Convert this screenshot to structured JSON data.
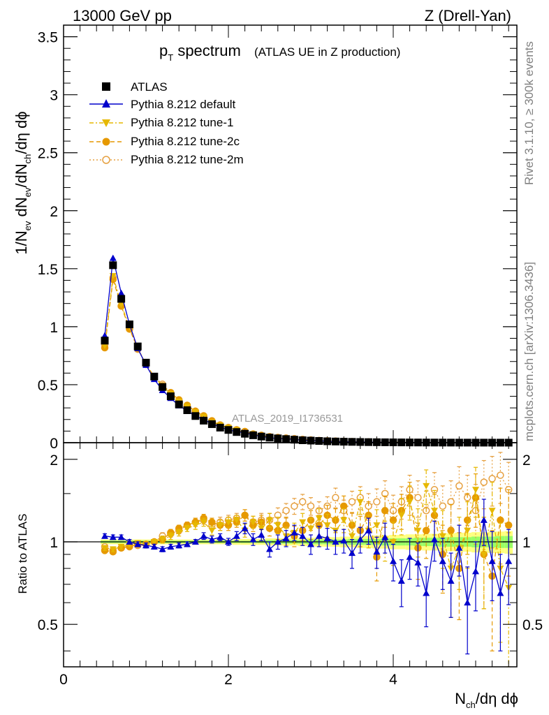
{
  "header": {
    "energy": "13000 GeV pp",
    "process": "Z (Drell-Yan)"
  },
  "side_labels": {
    "rivet": "Rivet 3.1.10, ≥ 300k events",
    "mcplots": "mcplots.cern.ch [arXiv:1306.3436]"
  },
  "colors": {
    "atlas": "#000000",
    "default": "#0000cc",
    "tune1": "#e6b800",
    "tune2c": "#e69900",
    "tune2m": "#e6a040",
    "band_inner": "#99ff66",
    "band_outer": "#ffff80"
  },
  "chart_data": {
    "type": "scatter",
    "title_main": "p",
    "title_sub": "T",
    "title_rest": " spectrum",
    "title_note": "(ATLAS UE in Z production)",
    "analysis_id": "ATLAS_2019_I1736531",
    "xlabel_main": "N",
    "xlabel_sub": "ch",
    "xlabel_rest": "/dη dϕ",
    "ylabel": "1/N_ev dN_ev/dN_ch/dη dϕ",
    "ylabel_parts": {
      "a": "1/N",
      "a_sub": "ev",
      "b": " dN",
      "b_sub": "ev",
      "c": "/dN",
      "c_sub": "ch",
      "d": "/dη dϕ"
    },
    "ratio_ylabel": "Ratio to ATLAS",
    "xlim": [
      0,
      5.5
    ],
    "ylim": [
      0,
      3.6
    ],
    "ratio_ylim": [
      0.35,
      2.3
    ],
    "x_ticks": [
      "0",
      "2",
      "4"
    ],
    "y_ticks": [
      "0",
      "0.5",
      "1",
      "1.5",
      "2",
      "2.5",
      "3",
      "3.5"
    ],
    "ratio_ticks": [
      "0.5",
      "1",
      "2"
    ],
    "legend": [
      "ATLAS",
      "Pythia 8.212 default",
      "Pythia 8.212 tune-1",
      "Pythia 8.212 tune-2c",
      "Pythia 8.212 tune-2m"
    ],
    "x": [
      0.5,
      0.6,
      0.7,
      0.8,
      0.9,
      1.0,
      1.1,
      1.2,
      1.3,
      1.4,
      1.5,
      1.6,
      1.7,
      1.8,
      1.9,
      2.0,
      2.1,
      2.2,
      2.3,
      2.4,
      2.5,
      2.6,
      2.7,
      2.8,
      2.9,
      3.0,
      3.1,
      3.2,
      3.3,
      3.4,
      3.5,
      3.6,
      3.7,
      3.8,
      3.9,
      4.0,
      4.1,
      4.2,
      4.3,
      4.4,
      4.5,
      4.6,
      4.7,
      4.8,
      4.9,
      5.0,
      5.1,
      5.2,
      5.3,
      5.4
    ],
    "atlas_values": [
      0.88,
      1.53,
      1.24,
      1.02,
      0.83,
      0.69,
      0.57,
      0.48,
      0.4,
      0.33,
      0.28,
      0.23,
      0.19,
      0.16,
      0.13,
      0.11,
      0.092,
      0.077,
      0.064,
      0.053,
      0.044,
      0.037,
      0.031,
      0.026,
      0.021,
      0.018,
      0.015,
      0.012,
      0.01,
      0.0085,
      0.0071,
      0.0059,
      0.0049,
      0.0041,
      0.0034,
      0.0029,
      0.0024,
      0.002,
      0.0017,
      0.0014,
      0.0012,
      0.001,
      0.00085,
      0.0007,
      0.0006,
      0.0005,
      0.00042,
      0.00035,
      0.0003,
      0.00025
    ],
    "ratio_series": [
      {
        "name": "Pythia 8.212 default",
        "values": [
          1.05,
          1.04,
          1.04,
          1.0,
          0.98,
          0.97,
          0.96,
          0.94,
          0.96,
          0.97,
          0.98,
          1.0,
          1.05,
          1.02,
          1.04,
          1.0,
          1.05,
          1.12,
          1.02,
          1.06,
          0.94,
          1.0,
          1.03,
          1.08,
          1.05,
          0.98,
          1.05,
          1.03,
          1.0,
          1.01,
          0.91,
          1.02,
          1.1,
          0.92,
          1.04,
          0.85,
          0.72,
          0.88,
          0.84,
          0.65,
          1.02,
          0.85,
          0.72,
          0.95,
          0.6,
          0.78,
          1.2,
          0.85,
          0.65,
          0.85
        ],
        "errors": [
          0.02,
          0.02,
          0.02,
          0.02,
          0.02,
          0.02,
          0.02,
          0.02,
          0.02,
          0.02,
          0.02,
          0.02,
          0.03,
          0.03,
          0.03,
          0.03,
          0.04,
          0.05,
          0.05,
          0.05,
          0.06,
          0.06,
          0.07,
          0.07,
          0.08,
          0.08,
          0.09,
          0.09,
          0.1,
          0.1,
          0.11,
          0.11,
          0.12,
          0.12,
          0.13,
          0.13,
          0.14,
          0.15,
          0.15,
          0.16,
          0.17,
          0.18,
          0.19,
          0.2,
          0.21,
          0.22,
          0.23,
          0.24,
          0.25,
          0.26
        ]
      },
      {
        "name": "Pythia 8.212 tune-1",
        "values": [
          0.95,
          0.94,
          0.96,
          0.98,
          0.99,
          0.97,
          1.0,
          1.02,
          1.05,
          1.08,
          1.12,
          1.15,
          1.18,
          1.1,
          1.15,
          1.18,
          1.2,
          1.1,
          1.18,
          1.12,
          1.2,
          1.15,
          1.05,
          1.08,
          1.18,
          1.12,
          1.22,
          1.15,
          1.1,
          1.2,
          1.05,
          1.4,
          1.1,
          1.15,
          1.02,
          1.0,
          1.25,
          1.4,
          1.1,
          1.6,
          1.3,
          1.05,
          0.8,
          0.95,
          1.1,
          1.55,
          0.9,
          1.3,
          0.8,
          0.68
        ],
        "errors": [
          0.02,
          0.02,
          0.02,
          0.02,
          0.02,
          0.02,
          0.02,
          0.03,
          0.03,
          0.03,
          0.03,
          0.04,
          0.04,
          0.04,
          0.05,
          0.05,
          0.05,
          0.06,
          0.06,
          0.07,
          0.07,
          0.08,
          0.08,
          0.09,
          0.09,
          0.1,
          0.1,
          0.11,
          0.12,
          0.12,
          0.13,
          0.14,
          0.15,
          0.16,
          0.17,
          0.18,
          0.19,
          0.2,
          0.22,
          0.23,
          0.24,
          0.25,
          0.27,
          0.28,
          0.3,
          0.32,
          0.33,
          0.35,
          0.37,
          0.4
        ]
      },
      {
        "name": "Pythia 8.212 tune-2c",
        "values": [
          0.93,
          0.92,
          0.95,
          0.96,
          0.98,
          0.98,
          1.0,
          1.02,
          1.08,
          1.12,
          1.15,
          1.18,
          1.22,
          1.18,
          1.15,
          1.15,
          1.18,
          1.25,
          1.15,
          1.18,
          1.12,
          1.1,
          1.15,
          1.05,
          1.1,
          1.2,
          1.15,
          1.25,
          1.2,
          1.35,
          1.15,
          1.1,
          1.25,
          0.88,
          1.3,
          1.2,
          1.3,
          1.45,
          0.95,
          1.1,
          1.25,
          0.9,
          1.1,
          0.8,
          1.2,
          1.45,
          0.9,
          0.75,
          1.2,
          1.15
        ],
        "errors": [
          0.02,
          0.02,
          0.02,
          0.02,
          0.02,
          0.02,
          0.02,
          0.03,
          0.03,
          0.03,
          0.03,
          0.04,
          0.04,
          0.04,
          0.05,
          0.05,
          0.05,
          0.06,
          0.06,
          0.07,
          0.07,
          0.08,
          0.08,
          0.09,
          0.09,
          0.1,
          0.1,
          0.11,
          0.12,
          0.12,
          0.13,
          0.14,
          0.15,
          0.16,
          0.17,
          0.18,
          0.19,
          0.2,
          0.22,
          0.23,
          0.24,
          0.25,
          0.27,
          0.28,
          0.3,
          0.32,
          0.33,
          0.35,
          0.37,
          0.4
        ]
      },
      {
        "name": "Pythia 8.212 tune-2m",
        "values": [
          0.96,
          0.93,
          0.95,
          0.97,
          0.97,
          0.98,
          1.0,
          1.05,
          1.07,
          1.1,
          1.15,
          1.18,
          1.2,
          1.15,
          1.18,
          1.2,
          1.22,
          1.25,
          1.18,
          1.2,
          1.2,
          1.25,
          1.3,
          1.35,
          1.4,
          1.35,
          1.3,
          1.35,
          1.45,
          1.3,
          1.4,
          1.45,
          1.35,
          1.4,
          1.5,
          1.3,
          1.4,
          1.55,
          1.45,
          1.3,
          1.55,
          1.35,
          1.4,
          1.6,
          1.45,
          1.3,
          1.65,
          1.7,
          1.75,
          1.55
        ],
        "errors": [
          0.02,
          0.02,
          0.02,
          0.02,
          0.02,
          0.02,
          0.02,
          0.03,
          0.03,
          0.03,
          0.03,
          0.04,
          0.04,
          0.04,
          0.05,
          0.05,
          0.05,
          0.06,
          0.06,
          0.07,
          0.07,
          0.08,
          0.08,
          0.09,
          0.09,
          0.1,
          0.1,
          0.11,
          0.12,
          0.12,
          0.13,
          0.14,
          0.15,
          0.16,
          0.17,
          0.18,
          0.19,
          0.2,
          0.22,
          0.23,
          0.24,
          0.25,
          0.27,
          0.28,
          0.3,
          0.32,
          0.33,
          0.35,
          0.37,
          0.4
        ]
      }
    ],
    "band_inner_halfwidth": [
      0.01,
      0.01,
      0.01,
      0.01,
      0.01,
      0.01,
      0.01,
      0.01,
      0.01,
      0.01,
      0.01,
      0.01,
      0.01,
      0.01,
      0.01,
      0.01,
      0.01,
      0.01,
      0.01,
      0.01,
      0.015,
      0.015,
      0.015,
      0.015,
      0.015,
      0.02,
      0.02,
      0.02,
      0.02,
      0.02,
      0.025,
      0.025,
      0.025,
      0.025,
      0.03,
      0.03,
      0.03,
      0.03,
      0.035,
      0.035,
      0.035,
      0.04,
      0.04,
      0.04,
      0.04,
      0.045,
      0.045,
      0.045,
      0.05,
      0.05
    ],
    "band_outer_halfwidth": [
      0.02,
      0.02,
      0.02,
      0.02,
      0.02,
      0.02,
      0.02,
      0.02,
      0.02,
      0.02,
      0.02,
      0.02,
      0.02,
      0.02,
      0.02,
      0.02,
      0.025,
      0.025,
      0.025,
      0.025,
      0.03,
      0.03,
      0.03,
      0.03,
      0.035,
      0.035,
      0.04,
      0.04,
      0.04,
      0.045,
      0.045,
      0.05,
      0.05,
      0.055,
      0.055,
      0.06,
      0.06,
      0.065,
      0.065,
      0.07,
      0.07,
      0.075,
      0.075,
      0.08,
      0.08,
      0.085,
      0.085,
      0.09,
      0.09,
      0.095
    ]
  }
}
